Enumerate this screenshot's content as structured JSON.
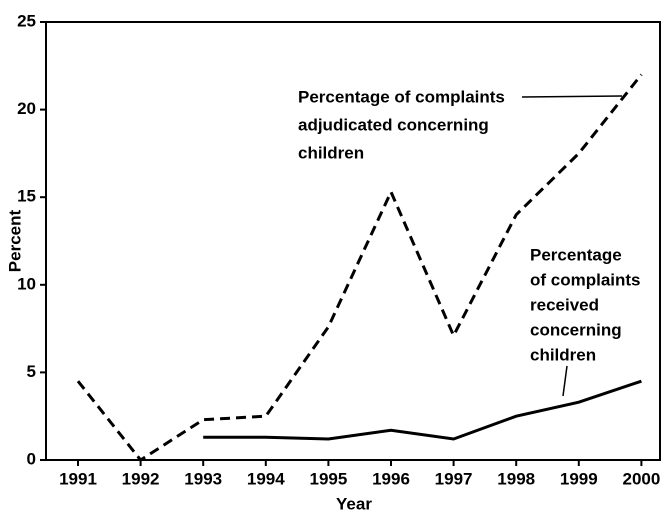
{
  "chart_data": {
    "type": "line",
    "xlabel": "Year",
    "ylabel": "Percent",
    "categories": [
      "1991",
      "1992",
      "1993",
      "1994",
      "1995",
      "1996",
      "1997",
      "1998",
      "1999",
      "2000"
    ],
    "series": [
      {
        "color": "#000000",
        "dash": true,
        "values": [
          4.5,
          0,
          2.3,
          2.5,
          7.6,
          15.3,
          7.1,
          14,
          17.5,
          22
        ]
      },
      {
        "color": "#000000",
        "dash": false,
        "values": [
          null,
          null,
          1.3,
          1.3,
          1.2,
          1.7,
          1.2,
          2.5,
          3.3,
          4.5
        ]
      }
    ],
    "annotations": [
      {
        "lines": [
          "Percentage of complaints",
          "adjudicated concerning",
          "children"
        ]
      },
      {
        "lines": [
          "Percentage",
          "of complaints",
          "received",
          "concerning",
          "children"
        ]
      }
    ],
    "ylim": [
      0,
      25
    ],
    "yticks": [
      0,
      5,
      10,
      15,
      20,
      25
    ],
    "grid": false
  }
}
